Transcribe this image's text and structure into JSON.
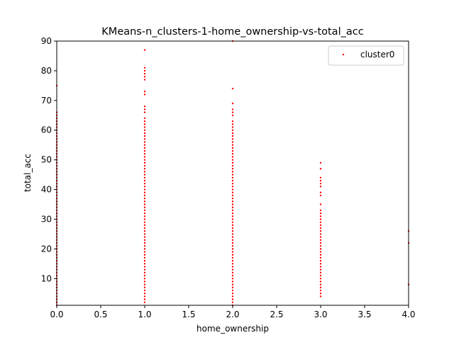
{
  "chart_data": {
    "type": "scatter",
    "title": "KMeans-n_clusters-1-home_ownership-vs-total_acc",
    "xlabel": "home_ownership",
    "ylabel": "total_acc",
    "xlim": [
      0.0,
      4.0
    ],
    "ylim": [
      1,
      90
    ],
    "xticks": [
      "0.0",
      "0.5",
      "1.0",
      "1.5",
      "2.0",
      "2.5",
      "3.0",
      "3.5",
      "4.0"
    ],
    "yticks": [
      "10",
      "20",
      "30",
      "40",
      "50",
      "60",
      "70",
      "80",
      "90"
    ],
    "grid": false,
    "legend_position": "top-right",
    "series": [
      {
        "name": "cluster0",
        "color": "#ff0000",
        "marker": "point",
        "groups": [
          {
            "x": 0,
            "y_min": 1,
            "y_max": 66,
            "extra_y": [
              75
            ]
          },
          {
            "x": 1,
            "y_min": 2,
            "y_max": 64,
            "extra_y": [
              66,
              67,
              68,
              72,
              73,
              77,
              78,
              79,
              80,
              81,
              87
            ]
          },
          {
            "x": 2,
            "y_min": 1,
            "y_max": 63,
            "extra_y": [
              65,
              66,
              67,
              69,
              74,
              90
            ]
          },
          {
            "x": 3,
            "y_min": 4,
            "y_max": 33,
            "extra_y": [
              35,
              38,
              39,
              41,
              42,
              43,
              44,
              47,
              49
            ]
          },
          {
            "x": 4,
            "y_min": 8,
            "y_max": 8,
            "extra_y": [
              22,
              26
            ]
          }
        ]
      }
    ]
  }
}
